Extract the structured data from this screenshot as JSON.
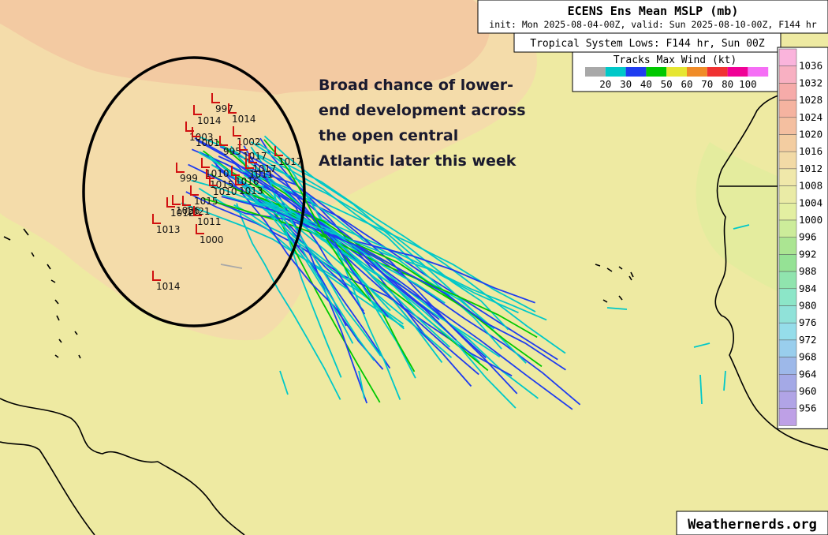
{
  "header": {
    "title": "ECENS Ens Mean MSLP (mb)",
    "init_line": "init: Mon 2025-08-04-00Z, valid: Sun 2025-08-10-00Z, F144 hr",
    "lows_label": "Tropical System Lows: F144 hr, Sun 00Z",
    "tracks_label": "Tracks Max Wind (kt)"
  },
  "wind_scale": {
    "labels": [
      20,
      30,
      40,
      50,
      60,
      70,
      80,
      100
    ],
    "colors": [
      "#a8a8a8",
      "#00c8c8",
      "#1e3cf0",
      "#00c800",
      "#e6e632",
      "#f08c28",
      "#f03232",
      "#f00096",
      "#f56ef5"
    ]
  },
  "pressure_scale": {
    "labels": [
      1036,
      1032,
      1028,
      1024,
      1020,
      1016,
      1012,
      1008,
      1004,
      1000,
      996,
      992,
      988,
      984,
      980,
      976,
      972,
      968,
      964,
      960,
      956
    ]
  },
  "annotation": [
    "Broad chance of lower-",
    "end development across",
    "the open central",
    "Atlantic later this week"
  ],
  "lows": [
    997,
    1014,
    1014,
    1003,
    1001,
    1002,
    995,
    1017,
    1017,
    1017,
    1011,
    999,
    1010,
    1016,
    1015,
    1013,
    1010,
    1015,
    1026,
    1012,
    1021,
    1011,
    1013,
    1000,
    1014
  ],
  "watermark": "Weathernerds.org"
}
